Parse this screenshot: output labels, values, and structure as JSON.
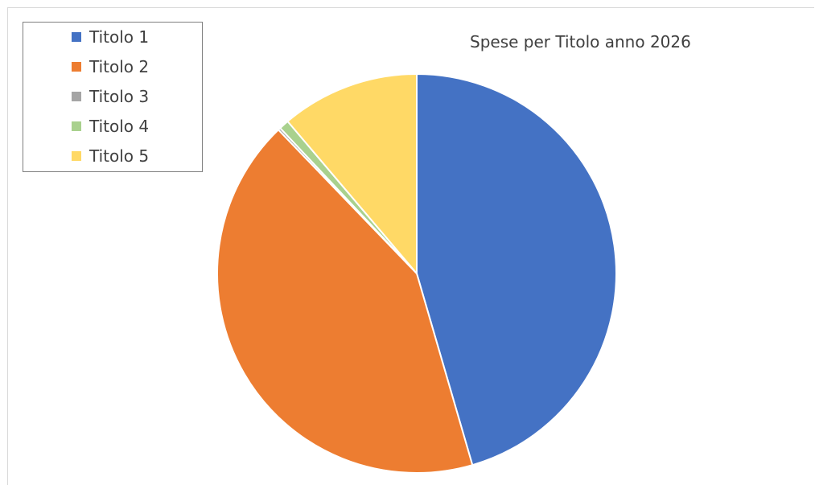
{
  "chart_data": {
    "type": "pie",
    "title": "Spese per Titolo anno 2026",
    "categories": [
      "Titolo 1",
      "Titolo 2",
      "Titolo 3",
      "Titolo 4",
      "Titolo 5"
    ],
    "values": [
      45.5,
      42.3,
      0.2,
      0.8,
      11.2
    ],
    "colors": [
      "#4472c4",
      "#ed7d31",
      "#a5a5a5",
      "#a9d18e",
      "#ffd966"
    ],
    "legend": "top-left",
    "start_angle": "12 o'clock",
    "direction": "clockwise"
  }
}
